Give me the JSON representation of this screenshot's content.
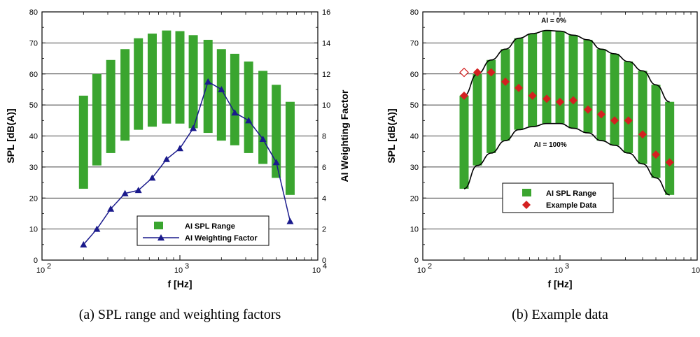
{
  "colors": {
    "range_bar": "#3aa52f",
    "weighting_line": "#1a1a8c",
    "example_marker": "#d42020",
    "envelope": "#000000",
    "grid": "#000000"
  },
  "chart_data": [
    {
      "id": "a",
      "type": "bar",
      "caption": "(a) SPL range and weighting factors",
      "xlabel": "f [Hz]",
      "ylabel": "SPL [dB(A)]",
      "y2label": "AI Weighting Factor",
      "xscale": "log",
      "xlim": [
        100,
        10000
      ],
      "ylim": [
        0,
        80
      ],
      "y2lim": [
        0,
        16
      ],
      "x_ticks": [
        100,
        1000,
        10000
      ],
      "x_tick_labels": [
        {
          "base": "10",
          "exp": "2"
        },
        {
          "base": "10",
          "exp": "3"
        },
        {
          "base": "10",
          "exp": "4"
        }
      ],
      "y_ticks": [
        0,
        10,
        20,
        30,
        40,
        50,
        60,
        70,
        80
      ],
      "y2_ticks": [
        0,
        2,
        4,
        6,
        8,
        10,
        12,
        14,
        16
      ],
      "grid": "horizontal",
      "legend_position": "bottom-right",
      "frequencies": [
        200,
        250,
        315,
        400,
        500,
        630,
        800,
        1000,
        1250,
        1600,
        2000,
        2500,
        3150,
        4000,
        5000,
        6300
      ],
      "series": [
        {
          "name": "AI SPL Range",
          "kind": "range_bar",
          "low": [
            23,
            30.5,
            34.5,
            38.5,
            42,
            43,
            44,
            44,
            42.5,
            41,
            38.5,
            37,
            34.5,
            31,
            26.5,
            21
          ],
          "high": [
            53,
            60,
            64.5,
            68,
            71.5,
            73,
            74,
            73.8,
            72.5,
            71,
            68,
            66.5,
            64,
            61,
            56.5,
            51
          ]
        },
        {
          "name": "AI Weighting Factor",
          "kind": "line",
          "axis": "y2",
          "values": [
            1.0,
            2.0,
            3.3,
            4.3,
            4.5,
            5.3,
            6.5,
            7.2,
            8.5,
            11.5,
            11.0,
            9.5,
            9.0,
            7.8,
            6.3,
            2.5
          ]
        }
      ]
    },
    {
      "id": "b",
      "type": "bar",
      "caption": "(b) Example data",
      "xlabel": "f [Hz]",
      "ylabel": "SPL [dB(A)]",
      "xscale": "log",
      "xlim": [
        100,
        10000
      ],
      "ylim": [
        0,
        80
      ],
      "x_ticks": [
        100,
        1000,
        10000
      ],
      "x_tick_labels": [
        {
          "base": "10",
          "exp": "2"
        },
        {
          "base": "10",
          "exp": "3"
        },
        {
          "base": "10",
          "exp": ""
        }
      ],
      "y_ticks": [
        0,
        10,
        20,
        30,
        40,
        50,
        60,
        70,
        80
      ],
      "grid": "horizontal",
      "legend_position": "center-right",
      "annotations": [
        {
          "text": "AI = 0%",
          "x": 900,
          "y": 76.5
        },
        {
          "text": "AI = 100%",
          "x": 850,
          "y": 36.5
        }
      ],
      "frequencies": [
        200,
        250,
        315,
        400,
        500,
        630,
        800,
        1000,
        1250,
        1600,
        2000,
        2500,
        3150,
        4000,
        5000,
        6300
      ],
      "series": [
        {
          "name": "AI SPL Range",
          "kind": "range_bar",
          "low": [
            23,
            30.5,
            34.5,
            38.5,
            42,
            43,
            44,
            44,
            42.5,
            41,
            38.5,
            37,
            34.5,
            31,
            26.5,
            21
          ],
          "high": [
            53,
            60,
            64.5,
            68,
            71.5,
            73,
            74,
            73.8,
            72.5,
            71,
            68,
            66.5,
            64,
            61,
            56.5,
            51
          ]
        },
        {
          "name": "Example Data",
          "kind": "marker",
          "x": [
            200,
            250,
            315,
            400,
            500,
            630,
            800,
            1000,
            1250,
            1600,
            2000,
            2500,
            3150,
            4000,
            5000,
            6300
          ],
          "values": [
            53,
            60.5,
            60.5,
            57.5,
            55.5,
            53,
            52,
            51,
            51.5,
            48.5,
            47,
            45,
            45,
            40.5,
            34,
            31.5
          ]
        },
        {
          "name": "",
          "kind": "open_marker",
          "x": [
            200
          ],
          "values": [
            60.5
          ]
        }
      ]
    }
  ]
}
